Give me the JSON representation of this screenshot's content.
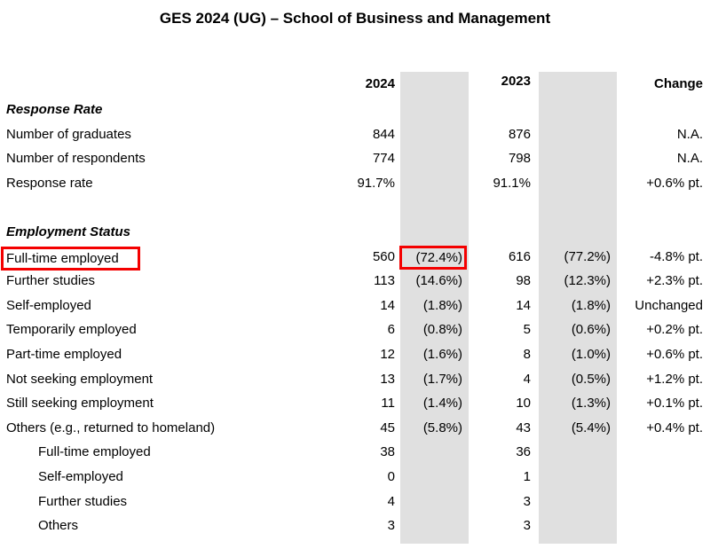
{
  "title": "GES 2024 (UG) – School of Business and Management",
  "colors": {
    "shade_gray": "#e0e0e0",
    "highlight_red": "#f40000"
  },
  "table": {
    "headers": {
      "year_current": "2024",
      "year_previous": "2023",
      "change": "Change"
    },
    "rows": [
      {
        "type": "section",
        "label": "Response Rate"
      },
      {
        "label": "Number of graduates",
        "n_2024": "844",
        "n_2023": "876",
        "change": "N.A."
      },
      {
        "label": "Number of respondents",
        "n_2024": "774",
        "n_2023": "798",
        "change": "N.A."
      },
      {
        "label": "Response rate",
        "n_2024": "91.7%",
        "n_2023": "91.1%",
        "change": "+0.6% pt."
      },
      {
        "type": "spacer"
      },
      {
        "type": "section",
        "label": "Employment Status"
      },
      {
        "label": "Full-time employed",
        "n_2024": "560",
        "pct_2024": "(72.4%)",
        "n_2023": "616",
        "pct_2023": "(77.2%)",
        "change": "-4.8% pt.",
        "highlighted": true
      },
      {
        "label": "Further studies",
        "n_2024": "113",
        "pct_2024": "(14.6%)",
        "n_2023": "98",
        "pct_2023": "(12.3%)",
        "change": "+2.3% pt."
      },
      {
        "label": "Self-employed",
        "n_2024": "14",
        "pct_2024": "(1.8%)",
        "n_2023": "14",
        "pct_2023": "(1.8%)",
        "change": "Unchanged"
      },
      {
        "label": "Temporarily employed",
        "n_2024": "6",
        "pct_2024": "(0.8%)",
        "n_2023": "5",
        "pct_2023": "(0.6%)",
        "change": "+0.2% pt."
      },
      {
        "label": "Part-time employed",
        "n_2024": "12",
        "pct_2024": "(1.6%)",
        "n_2023": "8",
        "pct_2023": "(1.0%)",
        "change": "+0.6% pt."
      },
      {
        "label": "Not seeking employment",
        "n_2024": "13",
        "pct_2024": "(1.7%)",
        "n_2023": "4",
        "pct_2023": "(0.5%)",
        "change": "+1.2% pt."
      },
      {
        "label": "Still seeking employment",
        "n_2024": "11",
        "pct_2024": "(1.4%)",
        "n_2023": "10",
        "pct_2023": "(1.3%)",
        "change": "+0.1% pt."
      },
      {
        "label": "Others (e.g., returned to homeland)",
        "n_2024": "45",
        "pct_2024": "(5.8%)",
        "n_2023": "43",
        "pct_2023": "(5.4%)",
        "change": "+0.4% pt."
      },
      {
        "label": "Full-time employed",
        "indent": true,
        "n_2024": "38",
        "n_2023": "36"
      },
      {
        "label": "Self-employed",
        "indent": true,
        "n_2024": "0",
        "n_2023": "1"
      },
      {
        "label": "Further studies",
        "indent": true,
        "n_2024": "4",
        "n_2023": "3"
      },
      {
        "label": "Others",
        "indent": true,
        "n_2024": "3",
        "n_2023": "3"
      }
    ]
  },
  "annotations": {
    "highlight_boxes": [
      {
        "target": "Full-time employed label",
        "color": "#f40000"
      },
      {
        "target": "(72.4%) value",
        "color": "#f40000"
      }
    ]
  }
}
